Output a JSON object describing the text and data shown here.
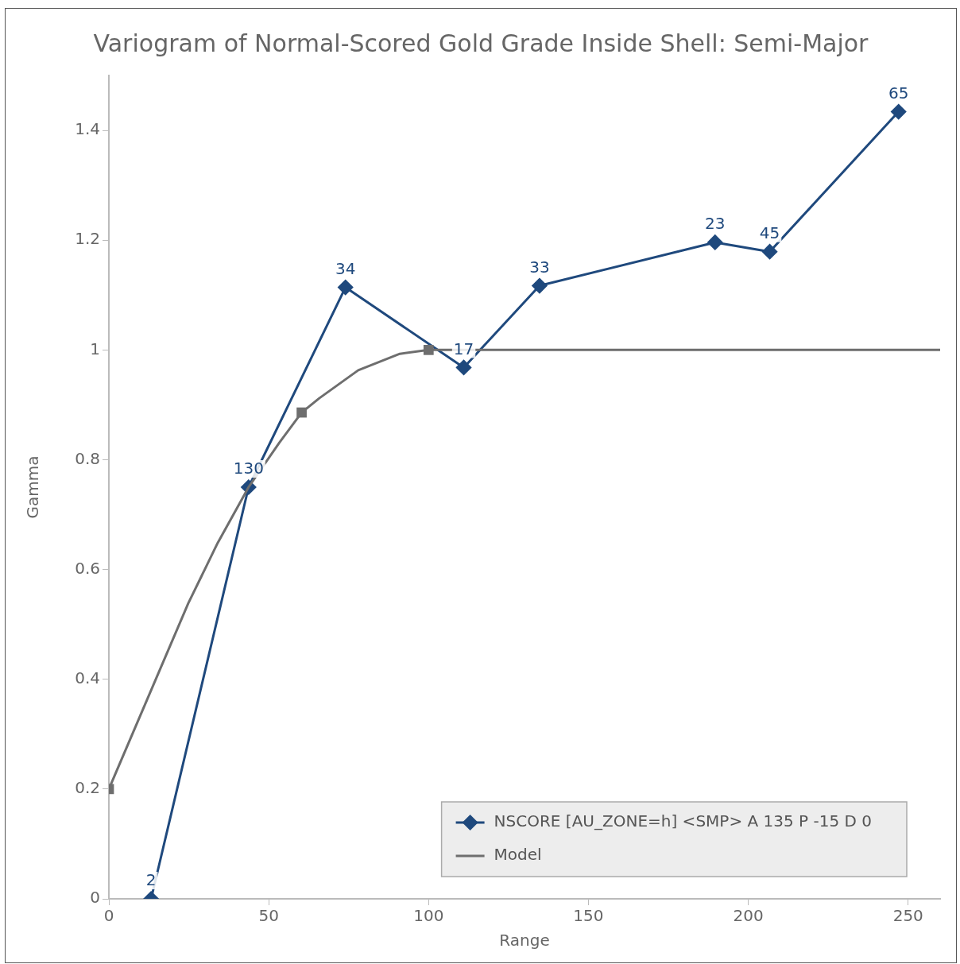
{
  "chart_data": {
    "type": "line",
    "title": "Variogram of Normal-Scored Gold Grade Inside Shell: Semi-Major",
    "xlabel": "Range",
    "ylabel": "Gamma",
    "xlim": [
      0,
      260
    ],
    "xticks": [
      0,
      50,
      100,
      150,
      200,
      250
    ],
    "ylim": [
      0,
      1.5
    ],
    "yticks": [
      0,
      0.2,
      0.4,
      0.6,
      0.8,
      1,
      1.2,
      1.4
    ],
    "grid": false,
    "legend": "bottom right",
    "annotations": [
      {
        "text": "2",
        "x": 13.2,
        "y": 0
      },
      {
        "text": "130",
        "x": 43.7,
        "y": 0.75
      },
      {
        "text": "34",
        "x": 74,
        "y": 1.114
      },
      {
        "text": "17",
        "x": 111,
        "y": 0.968
      },
      {
        "text": "33",
        "x": 134.7,
        "y": 1.117
      },
      {
        "text": "23",
        "x": 189.6,
        "y": 1.196
      },
      {
        "text": "45",
        "x": 206.7,
        "y": 1.179
      },
      {
        "text": "65",
        "x": 247,
        "y": 1.434
      }
    ],
    "series": [
      {
        "name": "NSCORE [AU_ZONE=h] <SMP> A 135 P -15 D 0",
        "color": "#1f497d",
        "marker": "diamond",
        "x": [
          13.2,
          43.7,
          74,
          111,
          134.7,
          189.6,
          206.7,
          247
        ],
        "values": [
          0,
          0.75,
          1.114,
          0.968,
          1.117,
          1.196,
          1.179,
          1.434
        ]
      },
      {
        "name": "Model",
        "color": "#6e6e6e",
        "marker": "none",
        "x": [
          0,
          24.8,
          34,
          43.7,
          53.3,
          60.3,
          65.8,
          78,
          91,
          100,
          260
        ],
        "values": [
          0.2,
          0.538,
          0.648,
          0.75,
          0.831,
          0.886,
          0.912,
          0.963,
          0.993,
          1,
          1
        ]
      },
      {
        "type": "scatter",
        "color": "#6e6e6e",
        "marker": "square",
        "x": [
          0,
          60.3,
          100
        ],
        "values": [
          0.2,
          0.886,
          1
        ]
      }
    ]
  }
}
